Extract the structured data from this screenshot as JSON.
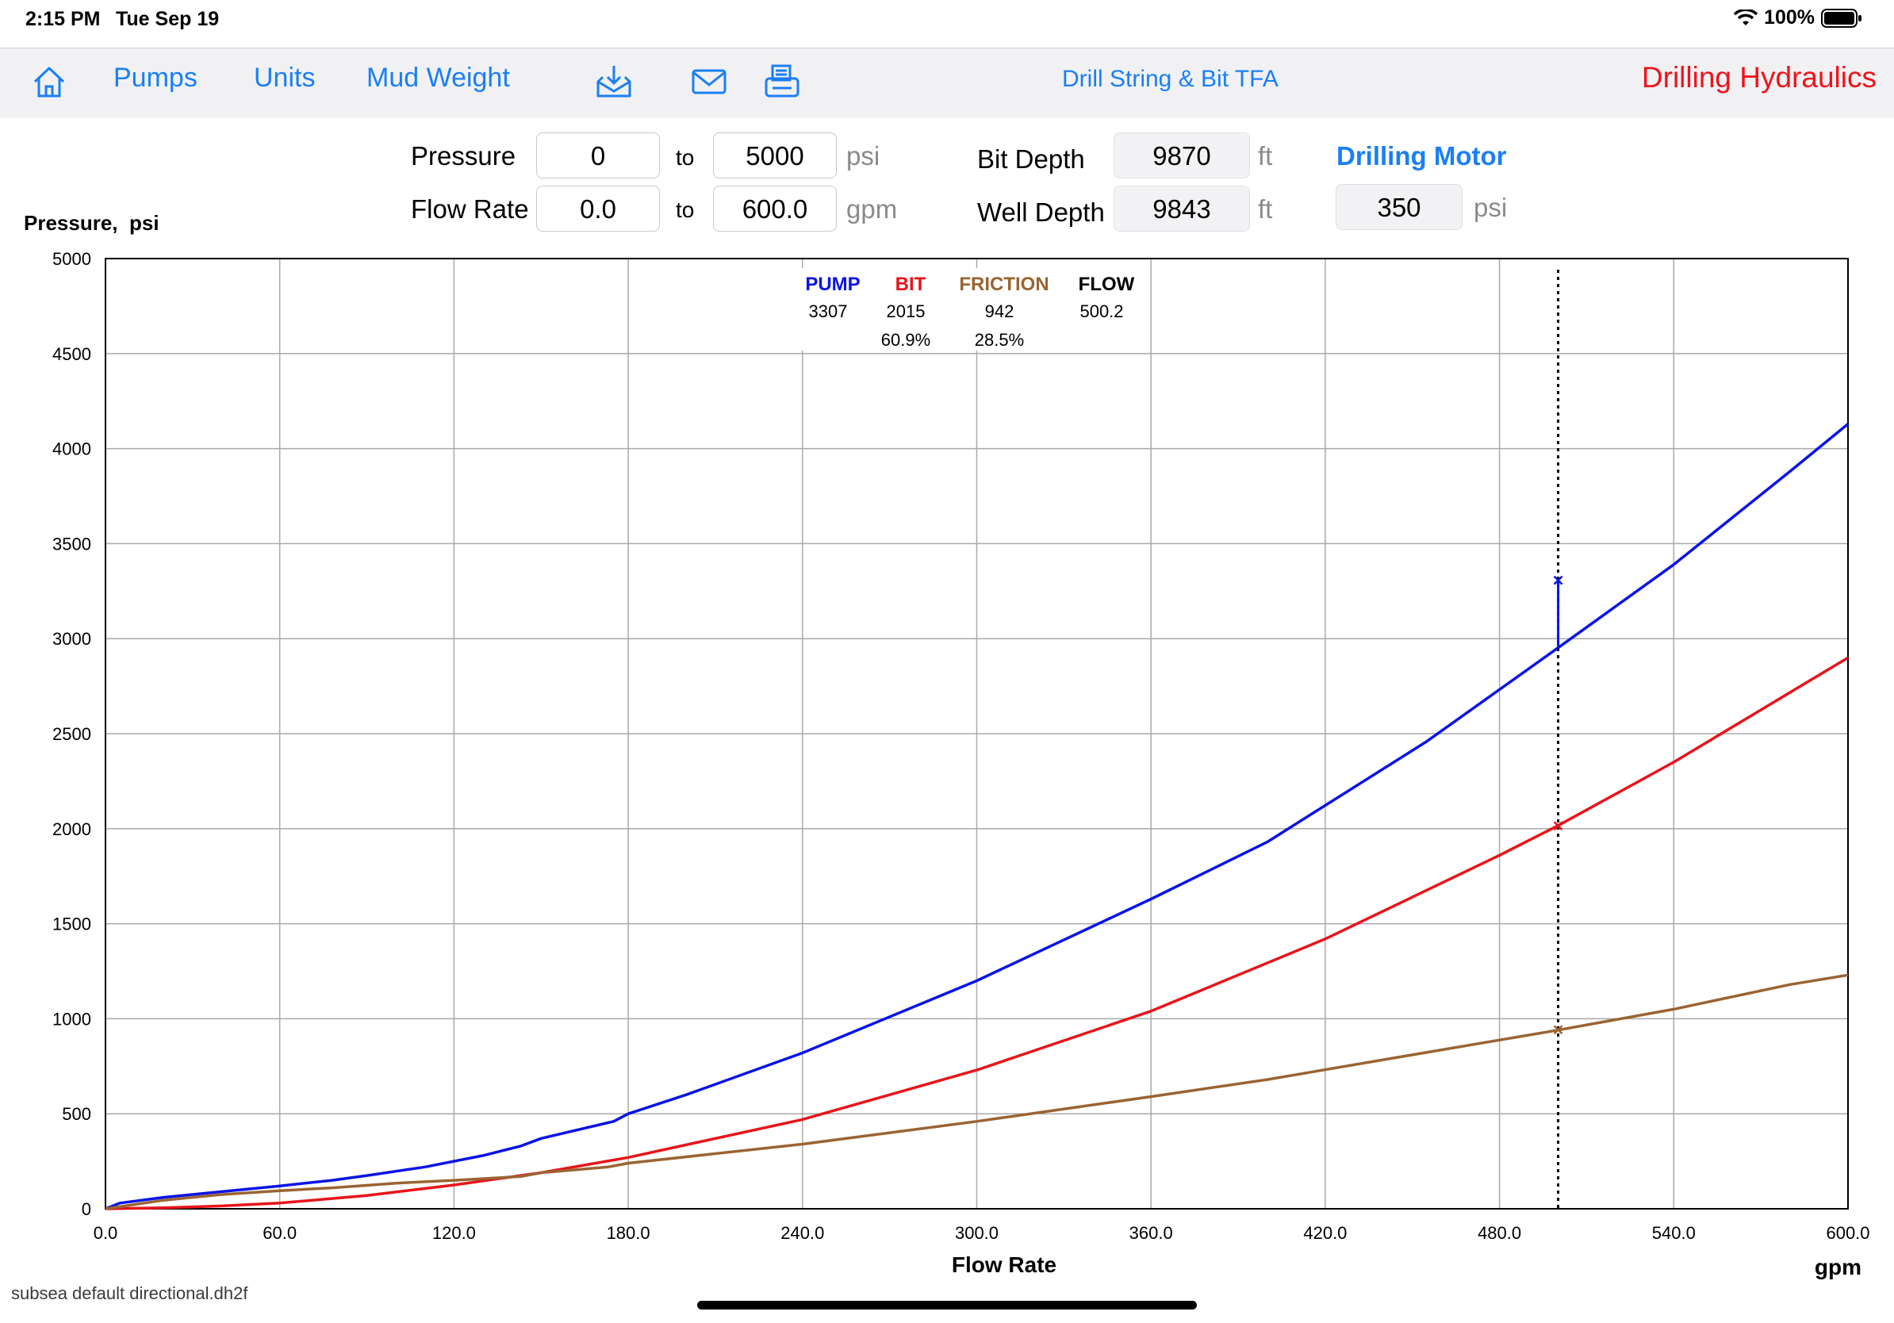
{
  "status": {
    "time": "2:15 PM",
    "date": "Tue Sep 19",
    "battery": "100%"
  },
  "toolbar": {
    "pumps_label": "Pumps",
    "units_label": "Units",
    "mud_weight_label": "Mud Weight",
    "center_title": "Drill String & Bit TFA",
    "app_title": "Drilling Hydraulics"
  },
  "params": {
    "pressure_label": "Pressure",
    "pressure_from": "0",
    "pressure_to": "5000",
    "pressure_unit": "psi",
    "flow_label": "Flow Rate",
    "flow_from": "0.0",
    "flow_to": "600.0",
    "flow_unit": "gpm",
    "to_label": "to",
    "bit_depth_label": "Bit Depth",
    "bit_depth": "9870",
    "well_depth_label": "Well Depth",
    "well_depth": "9843",
    "depth_unit": "ft",
    "motor_label": "Drilling Motor",
    "motor_value": "350",
    "motor_unit": "psi"
  },
  "chart_data": {
    "type": "line",
    "title": "",
    "ylabel": "Pressure,  psi",
    "xlabel": "Flow Rate",
    "x_unit": "gpm",
    "xlim": [
      0,
      600
    ],
    "ylim": [
      0,
      5000
    ],
    "x_ticks": [
      "0.0",
      "60.0",
      "120.0",
      "180.0",
      "240.0",
      "300.0",
      "360.0",
      "420.0",
      "480.0",
      "540.0",
      "600.0"
    ],
    "y_ticks": [
      "0",
      "500",
      "1000",
      "1500",
      "2000",
      "2500",
      "3000",
      "3500",
      "4000",
      "4500",
      "5000"
    ],
    "grid": true,
    "series": [
      {
        "name": "PUMP",
        "color": "#0a14e6",
        "x": [
          0,
          5,
          20,
          40,
          60,
          78,
          90,
          110,
          130,
          143,
          150,
          175,
          180,
          200,
          240,
          300,
          360,
          400,
          455,
          500,
          540,
          580,
          600
        ],
        "y": [
          0,
          30,
          60,
          90,
          120,
          150,
          175,
          220,
          280,
          330,
          370,
          460,
          500,
          600,
          820,
          1200,
          1630,
          1930,
          2460,
          2950,
          3390,
          3880,
          4130
        ]
      },
      {
        "name": "BIT",
        "color": "#e8141a",
        "x": [
          0,
          20,
          40,
          60,
          90,
          120,
          150,
          180,
          240,
          300,
          360,
          420,
          480,
          500,
          540,
          600
        ],
        "y": [
          0,
          5,
          15,
          30,
          70,
          125,
          190,
          270,
          470,
          730,
          1040,
          1420,
          1860,
          2015,
          2350,
          2900
        ]
      },
      {
        "name": "FRICTION",
        "color": "#9a6432",
        "x": [
          0,
          20,
          40,
          60,
          78,
          100,
          120,
          143,
          150,
          173,
          180,
          240,
          300,
          360,
          400,
          450,
          500,
          540,
          580,
          600
        ],
        "y": [
          0,
          45,
          75,
          95,
          110,
          135,
          150,
          170,
          190,
          220,
          240,
          340,
          460,
          590,
          680,
          810,
          940,
          1050,
          1180,
          1230
        ]
      }
    ],
    "marker": {
      "flow": 500.2,
      "pump": 3307,
      "pump_curve": 2950,
      "bit": 2015,
      "friction": 942
    },
    "readout": {
      "headers": [
        "PUMP",
        "BIT",
        "FRICTION",
        "FLOW"
      ],
      "header_colors": [
        "#0a14e6",
        "#e8141a",
        "#9a6432",
        "#000000"
      ],
      "values": [
        "3307",
        "2015",
        "942",
        "500.2"
      ],
      "percents": [
        "",
        "60.9%",
        "28.5%",
        ""
      ]
    }
  },
  "footer": {
    "filename": "subsea default directional.dh2f"
  }
}
